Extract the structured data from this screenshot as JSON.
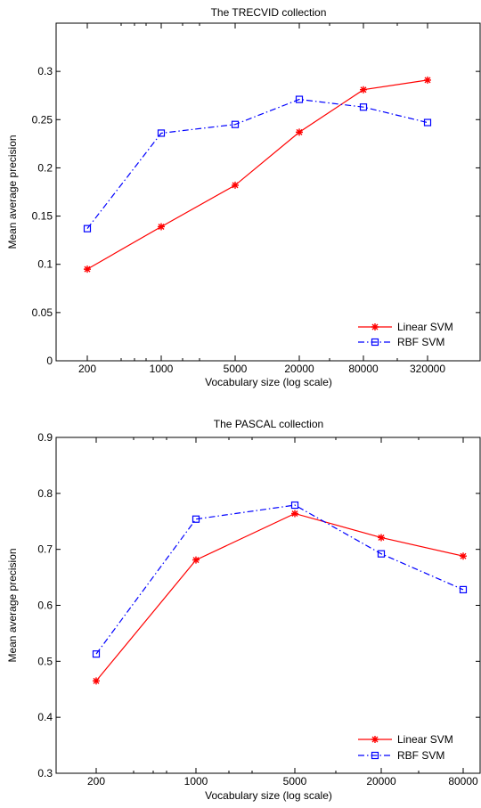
{
  "chart_data": [
    {
      "type": "line",
      "title": "The TRECVID collection",
      "xlabel": "Vocabulary size (log scale)",
      "ylabel": "Mean average precision",
      "x_scale": "log",
      "x": [
        200,
        1000,
        5000,
        20000,
        80000,
        320000
      ],
      "x_tick_labels": [
        "200",
        "1000",
        "5000",
        "20000",
        "80000",
        "320000"
      ],
      "ylim": [
        0,
        0.35
      ],
      "y_ticks": [
        0,
        0.05,
        0.1,
        0.15,
        0.2,
        0.25,
        0.3
      ],
      "y_tick_labels": [
        "0",
        "0.05",
        "0.1",
        "0.15",
        "0.2",
        "0.25",
        "0.3"
      ],
      "grid": false,
      "legend_position": "bottom-right",
      "series": [
        {
          "name": "Linear SVM",
          "color": "#ff0000",
          "line": "solid",
          "marker": "asterisk",
          "values": [
            0.095,
            0.139,
            0.182,
            0.237,
            0.281,
            0.291
          ]
        },
        {
          "name": "RBF SVM",
          "color": "#0000ff",
          "line": "dashdot",
          "marker": "square",
          "values": [
            0.137,
            0.236,
            0.245,
            0.271,
            0.263,
            0.247
          ]
        }
      ]
    },
    {
      "type": "line",
      "title": "The PASCAL collection",
      "xlabel": "Vocabulary size (log scale)",
      "ylabel": "Mean average precision",
      "x_scale": "log",
      "x": [
        200,
        1000,
        5000,
        20000,
        80000
      ],
      "x_tick_labels": [
        "200",
        "1000",
        "5000",
        "20000",
        "80000"
      ],
      "ylim": [
        0.3,
        0.9
      ],
      "y_ticks": [
        0.3,
        0.4,
        0.5,
        0.6,
        0.7,
        0.8,
        0.9
      ],
      "y_tick_labels": [
        "0.3",
        "0.4",
        "0.5",
        "0.6",
        "0.7",
        "0.8",
        "0.9"
      ],
      "grid": false,
      "legend_position": "bottom-right",
      "series": [
        {
          "name": "Linear SVM",
          "color": "#ff0000",
          "line": "solid",
          "marker": "asterisk",
          "values": [
            0.465,
            0.681,
            0.764,
            0.721,
            0.688
          ]
        },
        {
          "name": "RBF SVM",
          "color": "#0000ff",
          "line": "dashdot",
          "marker": "square",
          "values": [
            0.513,
            0.754,
            0.779,
            0.692,
            0.628
          ]
        }
      ]
    }
  ]
}
